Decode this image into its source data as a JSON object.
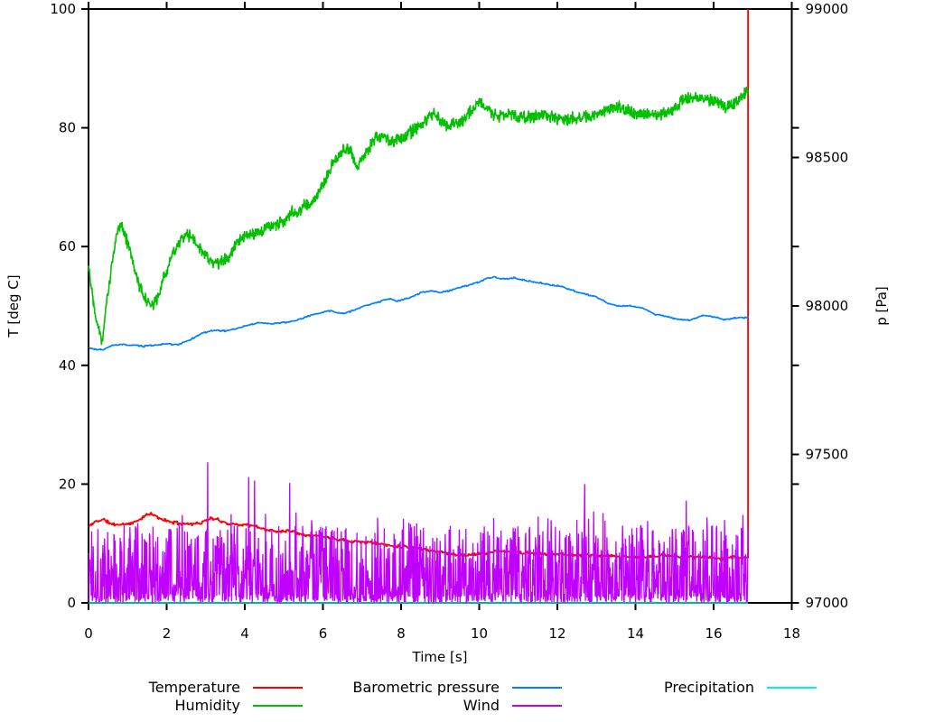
{
  "axes": {
    "x": {
      "label": "Time [s]",
      "min": 0,
      "max": 18,
      "ticks": [
        0,
        2,
        4,
        6,
        8,
        10,
        12,
        14,
        16,
        18
      ]
    },
    "y_left": {
      "label": "T [deg C]",
      "min": 0,
      "max": 100,
      "ticks": [
        0,
        20,
        40,
        60,
        80,
        100
      ]
    },
    "y_right": {
      "label": "p [Pa]",
      "min": 97000,
      "max": 99000,
      "ticks": [
        97000,
        97500,
        98000,
        98500,
        99000
      ]
    }
  },
  "chart_data": {
    "type": "line",
    "x_range": [
      0,
      18
    ],
    "t_end": 16.88,
    "grid": false,
    "legend_position": "below-plot, 3 columns x 2 rows",
    "series": [
      {
        "name": "Temperature",
        "color": "#ff0000",
        "axis": "left",
        "noise": 0.3,
        "end_spike_to": 100,
        "keypoints": [
          [
            0,
            12.8
          ],
          [
            0.2,
            13.8
          ],
          [
            0.4,
            14.0
          ],
          [
            0.6,
            13.2
          ],
          [
            0.8,
            13.2
          ],
          [
            1.0,
            13.3
          ],
          [
            1.2,
            13.6
          ],
          [
            1.4,
            14.5
          ],
          [
            1.6,
            15.0
          ],
          [
            1.8,
            14.3
          ],
          [
            2.0,
            13.8
          ],
          [
            2.3,
            13.4
          ],
          [
            2.6,
            13.3
          ],
          [
            2.9,
            13.5
          ],
          [
            3.1,
            14.2
          ],
          [
            3.3,
            14.0
          ],
          [
            3.6,
            13.3
          ],
          [
            3.9,
            13.2
          ],
          [
            4.2,
            13.0
          ],
          [
            4.5,
            12.4
          ],
          [
            4.8,
            12.0
          ],
          [
            5.1,
            12.2
          ],
          [
            5.4,
            11.7
          ],
          [
            5.7,
            11.3
          ],
          [
            6.0,
            11.2
          ],
          [
            6.3,
            10.8
          ],
          [
            6.6,
            10.5
          ],
          [
            6.9,
            10.3
          ],
          [
            7.2,
            10.2
          ],
          [
            7.5,
            9.9
          ],
          [
            7.8,
            9.6
          ],
          [
            8.1,
            9.5
          ],
          [
            8.4,
            9.3
          ],
          [
            8.7,
            8.9
          ],
          [
            9.0,
            8.6
          ],
          [
            9.3,
            8.2
          ],
          [
            9.6,
            8.0
          ],
          [
            9.9,
            8.2
          ],
          [
            10.2,
            8.4
          ],
          [
            10.5,
            8.7
          ],
          [
            10.8,
            8.6
          ],
          [
            11.1,
            8.4
          ],
          [
            11.4,
            8.3
          ],
          [
            11.7,
            8.3
          ],
          [
            12.0,
            8.2
          ],
          [
            12.3,
            8.1
          ],
          [
            12.6,
            8.0
          ],
          [
            12.9,
            8.0
          ],
          [
            13.2,
            7.9
          ],
          [
            13.5,
            7.8
          ],
          [
            13.8,
            7.7
          ],
          [
            14.1,
            7.7
          ],
          [
            14.4,
            7.8
          ],
          [
            14.7,
            8.0
          ],
          [
            15.0,
            7.9
          ],
          [
            15.3,
            7.8
          ],
          [
            15.6,
            7.7
          ],
          [
            15.9,
            7.6
          ],
          [
            16.2,
            7.5
          ],
          [
            16.5,
            7.7
          ],
          [
            16.88,
            7.6
          ]
        ]
      },
      {
        "name": "Humidity",
        "color": "#00c000",
        "axis": "left",
        "noise": 1.3,
        "keypoints": [
          [
            0,
            57
          ],
          [
            0.1,
            52
          ],
          [
            0.2,
            48
          ],
          [
            0.35,
            44
          ],
          [
            0.45,
            50
          ],
          [
            0.6,
            57
          ],
          [
            0.75,
            63
          ],
          [
            0.85,
            64
          ],
          [
            1.0,
            60.5
          ],
          [
            1.15,
            57
          ],
          [
            1.3,
            53.5
          ],
          [
            1.5,
            50.5
          ],
          [
            1.65,
            50
          ],
          [
            1.8,
            52
          ],
          [
            2.0,
            56
          ],
          [
            2.2,
            59.5
          ],
          [
            2.4,
            61.5
          ],
          [
            2.6,
            62
          ],
          [
            2.8,
            60
          ],
          [
            3.0,
            58.5
          ],
          [
            3.2,
            57
          ],
          [
            3.4,
            57.5
          ],
          [
            3.6,
            58.5
          ],
          [
            3.8,
            60.5
          ],
          [
            4.0,
            61.5
          ],
          [
            4.2,
            62
          ],
          [
            4.5,
            63
          ],
          [
            4.8,
            63.5
          ],
          [
            5.0,
            64.5
          ],
          [
            5.2,
            66
          ],
          [
            5.35,
            65.5
          ],
          [
            5.5,
            67
          ],
          [
            5.7,
            67
          ],
          [
            5.9,
            69
          ],
          [
            6.1,
            72
          ],
          [
            6.3,
            74.5
          ],
          [
            6.5,
            76
          ],
          [
            6.7,
            76.5
          ],
          [
            6.85,
            73.5
          ],
          [
            7.0,
            74.5
          ],
          [
            7.2,
            77
          ],
          [
            7.35,
            78.5
          ],
          [
            7.55,
            78.5
          ],
          [
            7.7,
            77.5
          ],
          [
            7.9,
            78
          ],
          [
            8.1,
            78.5
          ],
          [
            8.3,
            79.5
          ],
          [
            8.5,
            80.5
          ],
          [
            8.7,
            81.5
          ],
          [
            8.85,
            82.5
          ],
          [
            9.0,
            81
          ],
          [
            9.2,
            80.3
          ],
          [
            9.4,
            80.8
          ],
          [
            9.6,
            81.3
          ],
          [
            9.8,
            83
          ],
          [
            10.0,
            84.5
          ],
          [
            10.15,
            83.5
          ],
          [
            10.3,
            82.5
          ],
          [
            10.5,
            82
          ],
          [
            10.7,
            82.3
          ],
          [
            11.0,
            82
          ],
          [
            11.3,
            81.8
          ],
          [
            11.6,
            82
          ],
          [
            11.9,
            81.8
          ],
          [
            12.2,
            81.5
          ],
          [
            12.5,
            81.7
          ],
          [
            12.8,
            81.9
          ],
          [
            13.1,
            82.5
          ],
          [
            13.4,
            83.4
          ],
          [
            13.6,
            83.3
          ],
          [
            13.9,
            82.6
          ],
          [
            14.2,
            82.3
          ],
          [
            14.5,
            82.2
          ],
          [
            14.8,
            82.4
          ],
          [
            15.0,
            83.3
          ],
          [
            15.2,
            84.7
          ],
          [
            15.5,
            85.1
          ],
          [
            15.8,
            85
          ],
          [
            16.0,
            84.7
          ],
          [
            16.2,
            84
          ],
          [
            16.35,
            83.4
          ],
          [
            16.5,
            84
          ],
          [
            16.7,
            85.2
          ],
          [
            16.88,
            86.2
          ]
        ]
      },
      {
        "name": "Barometric pressure",
        "color": "#0080ff",
        "axis": "right",
        "noise_pa": 2.5,
        "keypoints": [
          [
            0,
            97860
          ],
          [
            0.2,
            97852
          ],
          [
            0.4,
            97854
          ],
          [
            0.6,
            97866
          ],
          [
            0.8,
            97870
          ],
          [
            1.1,
            97868
          ],
          [
            1.4,
            97864
          ],
          [
            1.7,
            97868
          ],
          [
            2.0,
            97872
          ],
          [
            2.3,
            97870
          ],
          [
            2.6,
            97886
          ],
          [
            2.9,
            97908
          ],
          [
            3.2,
            97918
          ],
          [
            3.5,
            97916
          ],
          [
            3.8,
            97924
          ],
          [
            4.1,
            97936
          ],
          [
            4.4,
            97944
          ],
          [
            4.7,
            97940
          ],
          [
            5.0,
            97944
          ],
          [
            5.3,
            97950
          ],
          [
            5.6,
            97964
          ],
          [
            5.9,
            97976
          ],
          [
            6.2,
            97984
          ],
          [
            6.5,
            97974
          ],
          [
            6.8,
            97986
          ],
          [
            7.1,
            98002
          ],
          [
            7.4,
            98012
          ],
          [
            7.7,
            98024
          ],
          [
            7.9,
            98016
          ],
          [
            8.2,
            98026
          ],
          [
            8.5,
            98044
          ],
          [
            8.8,
            98052
          ],
          [
            9.0,
            98044
          ],
          [
            9.3,
            98054
          ],
          [
            9.6,
            98066
          ],
          [
            9.9,
            98076
          ],
          [
            10.2,
            98092
          ],
          [
            10.4,
            98098
          ],
          [
            10.6,
            98090
          ],
          [
            10.9,
            98094
          ],
          [
            11.2,
            98086
          ],
          [
            11.5,
            98078
          ],
          [
            11.8,
            98072
          ],
          [
            12.1,
            98066
          ],
          [
            12.4,
            98052
          ],
          [
            12.7,
            98040
          ],
          [
            13.0,
            98030
          ],
          [
            13.3,
            98008
          ],
          [
            13.6,
            98000
          ],
          [
            13.9,
            98000
          ],
          [
            14.2,
            97992
          ],
          [
            14.5,
            97972
          ],
          [
            14.8,
            97964
          ],
          [
            15.1,
            97954
          ],
          [
            15.4,
            97952
          ],
          [
            15.7,
            97968
          ],
          [
            16.0,
            97964
          ],
          [
            16.3,
            97954
          ],
          [
            16.6,
            97960
          ],
          [
            16.88,
            97962
          ]
        ]
      },
      {
        "name": "Wind",
        "color": "#c000ff",
        "axis": "left",
        "pattern": "random-spikes",
        "spike_band": [
          0,
          13.5
        ],
        "outlier_spikes": [
          [
            3.05,
            23.7
          ],
          [
            4.1,
            21.2
          ],
          [
            4.25,
            20.6
          ],
          [
            5.15,
            20.2
          ],
          [
            12.7,
            20.0
          ],
          [
            15.3,
            17.2
          ],
          [
            16.75,
            14.8
          ]
        ],
        "seed": 1337
      },
      {
        "name": "Precipitation",
        "color": "#00eeee",
        "axis": "left",
        "constant": 0,
        "note": "flat at zero, hidden beneath axis border"
      }
    ]
  },
  "style": {
    "background": "#ffffff",
    "border_color": "#000000",
    "text_color": "#000000"
  }
}
